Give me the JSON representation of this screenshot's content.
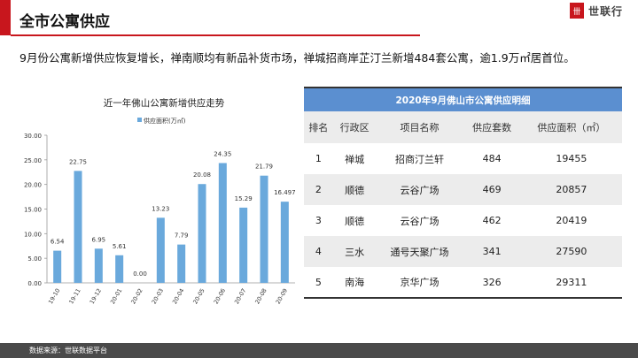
{
  "header": {
    "title": "全市公寓供应",
    "logo_text": "世联行",
    "logo_mark": "卌"
  },
  "summary": "9月份公寓新增供应恢复增长，禅南顺均有新品补货市场，禅城招商岸芷汀兰新增484套公寓，逾1.9万㎡居首位。",
  "colors": {
    "accent": "#c8161d",
    "bar": "#6aa9dc",
    "table_header": "#5b8fd0"
  },
  "chart_data": {
    "type": "bar",
    "title": "近一年佛山公寓新增供应走势",
    "categories": [
      "19-10",
      "19-11",
      "19-12",
      "20-01",
      "20-02",
      "20-03",
      "20-04",
      "20-05",
      "20-06",
      "20-07",
      "20-08",
      "20-09"
    ],
    "series": [
      {
        "name": "供应面积(万㎡)",
        "values": [
          6.54,
          22.75,
          6.95,
          5.61,
          0.0,
          13.23,
          7.79,
          20.08,
          24.35,
          15.29,
          21.79,
          16.497
        ]
      }
    ],
    "data_labels": [
      "6.54",
      "22.75",
      "6.95",
      "5.61",
      "0.00",
      "13.23",
      "7.79",
      "20.08",
      "24.35",
      "15.29",
      "21.79",
      "16.497"
    ],
    "yticks": [
      "0.00",
      "5.00",
      "10.00",
      "15.00",
      "20.00",
      "25.00",
      "30.00"
    ],
    "ylim": [
      0,
      30
    ],
    "legend": "top",
    "grid": false
  },
  "table": {
    "caption": "2020年9月佛山市公寓供应明细",
    "headers": [
      "排名",
      "行政区",
      "项目名称",
      "供应套数",
      "供应面积（㎡）"
    ],
    "rows": [
      [
        "1",
        "禅城",
        "招商汀兰轩",
        "484",
        "19455"
      ],
      [
        "2",
        "顺德",
        "云谷广场",
        "469",
        "20857"
      ],
      [
        "3",
        "顺德",
        "云谷广场",
        "462",
        "20419"
      ],
      [
        "4",
        "三水",
        "通号天聚广场",
        "341",
        "27590"
      ],
      [
        "5",
        "南海",
        "京华广场",
        "326",
        "29311"
      ]
    ]
  },
  "footer": {
    "source": "数据来源：世联数据平台"
  }
}
